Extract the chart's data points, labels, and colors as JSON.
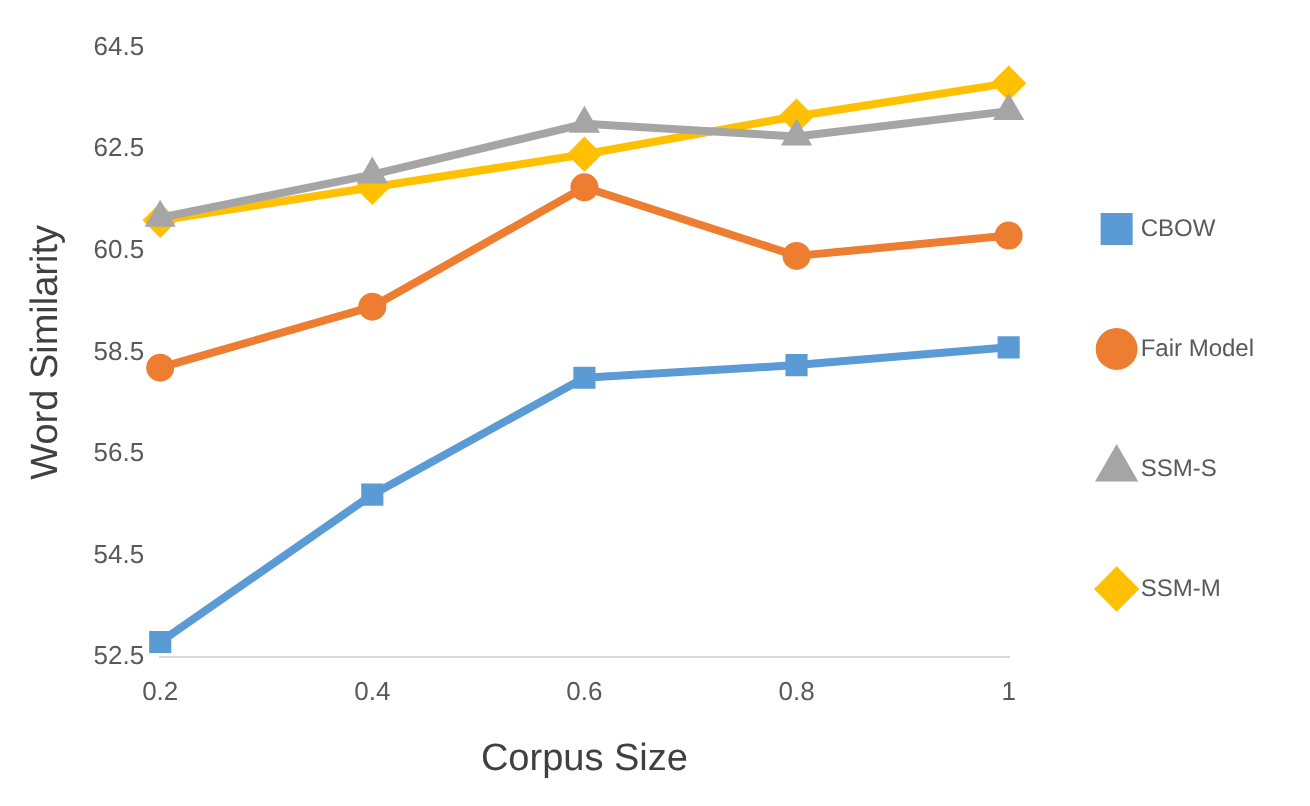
{
  "chart_data": {
    "type": "line",
    "xlabel": "Corpus Size",
    "ylabel": "Word Similarity",
    "categories": [
      "0.2",
      "0.4",
      "0.6",
      "0.8",
      "1"
    ],
    "ylim": [
      52.5,
      64.5
    ],
    "yticks": [
      52.5,
      54.5,
      56.5,
      58.5,
      60.5,
      62.5,
      64.5
    ],
    "grid": false,
    "legend": "right",
    "series": [
      {
        "name": "CBOW",
        "color": "#5b9bd5",
        "marker": "square",
        "values": [
          52.8,
          55.7,
          58.0,
          58.25,
          58.6
        ]
      },
      {
        "name": "Fair Model",
        "color": "#ed7d31",
        "marker": "circle",
        "values": [
          58.2,
          59.4,
          61.75,
          60.4,
          60.8
        ]
      },
      {
        "name": "SSM-S",
        "color": "#a5a5a5",
        "marker": "triangle",
        "values": [
          61.15,
          62.0,
          63.0,
          62.75,
          63.25
        ]
      },
      {
        "name": "SSM-M",
        "color": "#ffc000",
        "marker": "diamond",
        "values": [
          61.1,
          61.75,
          62.4,
          63.15,
          63.8
        ]
      }
    ]
  }
}
